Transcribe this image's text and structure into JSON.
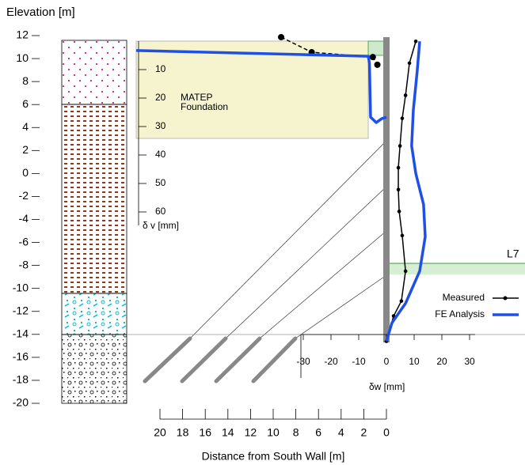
{
  "chart_data": [
    {
      "type": "line",
      "y_label": "Elevation [m]",
      "x_label": "δw [mm]",
      "ylim": [
        -20,
        12
      ],
      "yticks": [
        -20,
        -18,
        -16,
        -14,
        -12,
        -10,
        -8,
        -6,
        -4,
        -2,
        0,
        2,
        4,
        6,
        8,
        10,
        12
      ],
      "xlim": [
        -30,
        30
      ],
      "xticks": [
        -30,
        -20,
        -10,
        0,
        10,
        20,
        30
      ],
      "annotation": "L7",
      "legend": "lower right",
      "series": [
        {
          "name": "Measured",
          "color": "#000000",
          "markers": true,
          "x": [
            10.6,
            8.3,
            6.9,
            5.7,
            4.9,
            4.3,
            4.3,
            4.6,
            5.7,
            6.9,
            5.4,
            2.6,
            0
          ],
          "y": [
            11.5,
            9.6,
            6.8,
            4.8,
            2.4,
            0.5,
            -1.4,
            -3.3,
            -5.4,
            -8.5,
            -11.1,
            -12.4,
            -14.6
          ]
        },
        {
          "name": "FE Analysis",
          "color": "#1f4fe6",
          "markers": false,
          "x": [
            12,
            11.1,
            9.7,
            9.1,
            10.6,
            13.4,
            14,
            12,
            6.9,
            2,
            0
          ],
          "y": [
            11.5,
            8.9,
            5.5,
            2.4,
            0,
            -2.7,
            -5.5,
            -8.5,
            -11.3,
            -13,
            -14.6
          ]
        }
      ]
    },
    {
      "type": "line",
      "x_label": "Distance from South Wall [m]",
      "y_label": "δ v [mm]",
      "xlim": [
        20,
        0
      ],
      "xticks": [
        20,
        18,
        16,
        14,
        12,
        10,
        8,
        6,
        4,
        2,
        0
      ],
      "ylim": [
        0,
        60
      ],
      "yticks": [
        10,
        20,
        30,
        40,
        50,
        60
      ],
      "annotation": [
        "MATEP",
        "Foundation"
      ],
      "series": [
        {
          "name": "Measured",
          "color": "#000000",
          "markers": true,
          "dashed": true,
          "x": [
            9.3,
            6.6,
            1.2,
            0.8
          ],
          "y": [
            -1.4,
            3.9,
            5.6,
            8.3
          ]
        },
        {
          "name": "FE Analysis",
          "color": "#1f4fe6",
          "markers": false,
          "dashed": false,
          "x": [
            22.1,
            1.6,
            1.5,
            1.4,
            0.9,
            0.4,
            0
          ],
          "y": [
            3.3,
            5.3,
            7.8,
            26.7,
            28.6,
            27.2,
            26.7
          ]
        }
      ]
    }
  ]
}
